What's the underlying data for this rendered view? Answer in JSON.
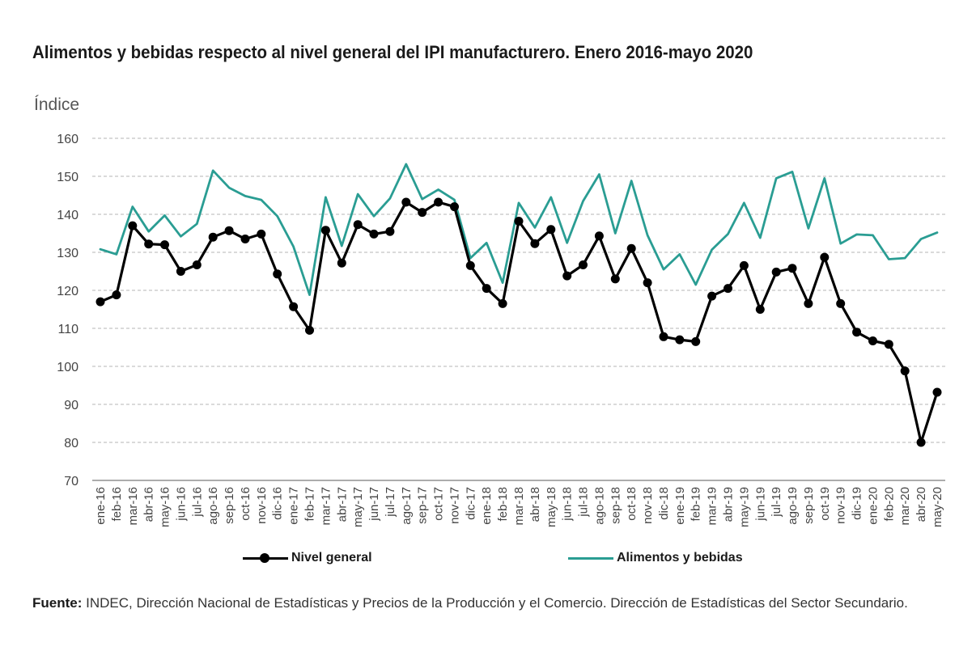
{
  "chart_data": {
    "type": "line",
    "title": "Alimentos y bebidas respecto al nivel general del IPI manufacturero. Enero 2016-mayo 2020",
    "ylabel": "Índice",
    "xlabel": "",
    "ylim": [
      70,
      160
    ],
    "yticks": [
      70,
      80,
      90,
      100,
      110,
      120,
      130,
      140,
      150,
      160
    ],
    "grid": true,
    "legend_position": "bottom",
    "categories": [
      "ene-16",
      "feb-16",
      "mar-16",
      "abr-16",
      "may-16",
      "jun-16",
      "jul-16",
      "ago-16",
      "sep-16",
      "oct-16",
      "nov-16",
      "dic-16",
      "ene-17",
      "feb-17",
      "mar-17",
      "abr-17",
      "may-17",
      "jun-17",
      "jul-17",
      "ago-17",
      "sep-17",
      "oct-17",
      "nov-17",
      "dic-17",
      "ene-18",
      "feb-18",
      "mar-18",
      "abr-18",
      "may-18",
      "jun-18",
      "jul-18",
      "ago-18",
      "sep-18",
      "oct-18",
      "nov-18",
      "dic-18",
      "ene-19",
      "feb-19",
      "mar-19",
      "abr-19",
      "may-19",
      "jun-19",
      "jul-19",
      "ago-19",
      "sep-19",
      "oct-19",
      "nov-19",
      "dic-19",
      "ene-20",
      "feb-20",
      "mar-20",
      "abr-20",
      "may-20"
    ],
    "series": [
      {
        "name": "Nivel general",
        "color": "#000000",
        "markers": true,
        "values": [
          117,
          118.8,
          137,
          132.2,
          132,
          125,
          126.7,
          134,
          135.7,
          133.5,
          134.8,
          124.3,
          115.7,
          109.5,
          135.8,
          127.2,
          137.3,
          134.8,
          135.5,
          143.2,
          140.5,
          143.2,
          142,
          126.5,
          120.5,
          116.5,
          138.2,
          132.3,
          136,
          123.8,
          126.7,
          134.3,
          123,
          131,
          122,
          107.8,
          107,
          106.5,
          118.5,
          120.5,
          126.5,
          115,
          124.8,
          125.8,
          116.5,
          128.7,
          116.5,
          109,
          106.7,
          105.8,
          98.8,
          80,
          93.2
        ]
      },
      {
        "name": "Alimentos y bebidas",
        "color": "#2a9d93",
        "markers": false,
        "values": [
          130.8,
          129.5,
          142,
          135.5,
          139.7,
          134.2,
          137.5,
          151.5,
          147,
          144.8,
          143.8,
          139.5,
          131.5,
          118.8,
          144.5,
          131.7,
          145.3,
          139.5,
          144.2,
          153.2,
          144,
          146.5,
          143.8,
          128.5,
          132.5,
          122,
          143,
          136.5,
          144.5,
          132.5,
          143.5,
          150.5,
          135,
          148.8,
          134.5,
          125.5,
          129.5,
          121.5,
          130.7,
          134.8,
          143,
          133.8,
          149.5,
          151.2,
          136.3,
          149.5,
          132.3,
          134.7,
          134.5,
          128.2,
          128.5,
          133.5,
          135.2
        ]
      }
    ]
  },
  "source": {
    "label": "Fuente:",
    "text": " INDEC, Dirección Nacional de Estadísticas y Precios de la Producción y el Comercio. Dirección de Estadísticas del Sector Secundario."
  }
}
